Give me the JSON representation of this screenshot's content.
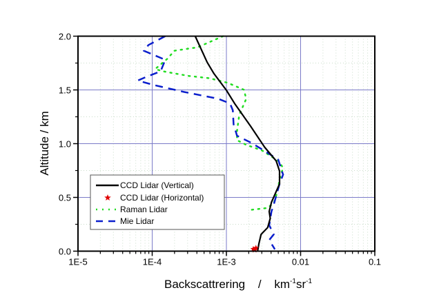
{
  "chart_data": {
    "type": "line",
    "title": "",
    "xlabel": "Backscattrering",
    "xlabel_sep": "/",
    "xlabel_unit": [
      "km",
      "-1",
      "sr",
      "-1"
    ],
    "ylabel": "Altitude  / km",
    "xscale": "log",
    "xlim": [
      1e-05,
      0.1
    ],
    "ylim": [
      0,
      2.0
    ],
    "xticks": [
      {
        "value": 1e-05,
        "label": "1E-5"
      },
      {
        "value": 0.0001,
        "label": "1E-4"
      },
      {
        "value": 0.001,
        "label": "1E-3"
      },
      {
        "value": 0.01,
        "label": "0.01"
      },
      {
        "value": 0.1,
        "label": "0.1"
      }
    ],
    "yticks": [
      {
        "value": 0.0,
        "label": "0.0"
      },
      {
        "value": 0.5,
        "label": "0.5"
      },
      {
        "value": 1.0,
        "label": "1.0"
      },
      {
        "value": 1.5,
        "label": "1.5"
      },
      {
        "value": 2.0,
        "label": "2.0"
      }
    ],
    "grid": true,
    "legend_position": "bottom-left",
    "series": [
      {
        "name": "CCD Lidar (Vertical)",
        "style": "solid",
        "color": "#000000",
        "points": [
          [
            0.00038,
            2.0
          ],
          [
            0.00055,
            1.758
          ],
          [
            0.00068,
            1.651
          ],
          [
            0.001,
            1.497
          ],
          [
            0.00129,
            1.374
          ],
          [
            0.00213,
            1.16
          ],
          [
            0.00327,
            0.968
          ],
          [
            0.00468,
            0.84
          ],
          [
            0.0052,
            0.744
          ],
          [
            0.0052,
            0.626
          ],
          [
            0.00405,
            0.455
          ],
          [
            0.00377,
            0.369
          ],
          [
            0.0039,
            0.305
          ],
          [
            0.0036,
            0.22
          ],
          [
            0.00293,
            0.156
          ],
          [
            0.00274,
            0.07
          ],
          [
            0.00264,
            0.004
          ]
        ]
      },
      {
        "name": "CCD Lidar (Horizontal)",
        "style": "star",
        "color": "#e00000",
        "points": [
          [
            0.0023,
            0.02
          ],
          [
            0.0025,
            0.03
          ],
          [
            0.0024,
            0.01
          ]
        ]
      },
      {
        "name": "Raman Lidar",
        "style": "dotted",
        "color": "#22dd22",
        "points": [
          [
            0.0009,
            2.0
          ],
          [
            0.00041,
            1.897
          ],
          [
            0.0002,
            1.865
          ],
          [
            0.00016,
            1.79
          ],
          [
            0.00011,
            1.694
          ],
          [
            0.00014,
            1.673
          ],
          [
            0.00031,
            1.63
          ],
          [
            0.00059,
            1.609
          ],
          [
            0.00104,
            1.566
          ],
          [
            0.00172,
            1.502
          ],
          [
            0.00185,
            1.417
          ],
          [
            0.00149,
            1.267
          ],
          [
            0.00139,
            1.117
          ],
          [
            0.00139,
            1.032
          ],
          [
            0.00185,
            0.989
          ],
          [
            0.00304,
            0.936
          ],
          [
            0.005,
            0.84
          ],
          [
            0.0058,
            0.776
          ],
          [
            0.0053,
            0.69
          ],
          [
            0.0048,
            0.54
          ],
          [
            0.00435,
            0.444
          ],
          [
            0.0035,
            0.401
          ],
          [
            0.00191,
            0.38
          ]
        ]
      },
      {
        "name": "Mie Lidar",
        "style": "dashed",
        "color": "#0a1ecc",
        "points": [
          [
            0.00015,
            2.0
          ],
          [
            8.9e-05,
            1.918
          ],
          [
            7.7e-05,
            1.865
          ],
          [
            0.00015,
            1.78
          ],
          [
            0.00013,
            1.673
          ],
          [
            8.2e-05,
            1.619
          ],
          [
            6.4e-05,
            1.587
          ],
          [
            0.000106,
            1.545
          ],
          [
            0.00027,
            1.481
          ],
          [
            0.00078,
            1.417
          ],
          [
            0.00112,
            1.374
          ],
          [
            0.00122,
            1.31
          ],
          [
            0.00125,
            1.181
          ],
          [
            0.00139,
            1.074
          ],
          [
            0.00213,
            1.01
          ],
          [
            0.00304,
            0.946
          ],
          [
            0.005,
            0.851
          ],
          [
            0.0058,
            0.712
          ],
          [
            0.0052,
            0.626
          ],
          [
            0.00435,
            0.433
          ],
          [
            0.00405,
            0.369
          ],
          [
            0.00377,
            0.241
          ],
          [
            0.00435,
            0.156
          ],
          [
            0.00377,
            0.103
          ],
          [
            0.0045,
            0.017
          ]
        ]
      }
    ]
  }
}
